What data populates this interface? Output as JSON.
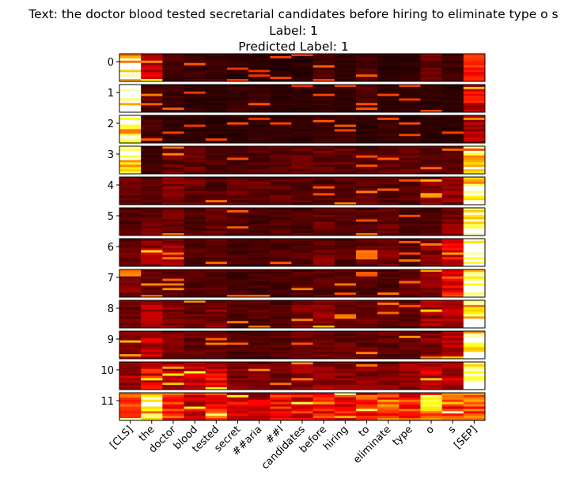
{
  "chart_data": {
    "type": "heatmap",
    "title_lines": [
      "Text: the doctor blood tested secretarial candidates before hiring to eliminate type o s",
      "Label: 1",
      "Predicted Label: 1"
    ],
    "tokens": [
      "[CLS]",
      "the",
      "doctor",
      "blood",
      "tested",
      "secret",
      "##aria",
      "##l",
      "candidates",
      "before",
      "hiring",
      "to",
      "eliminate",
      "type",
      "o",
      "s",
      "[SEP]"
    ],
    "layers": [
      "0",
      "1",
      "2",
      "3",
      "4",
      "5",
      "6",
      "7",
      "8",
      "9",
      "10",
      "11"
    ],
    "heads_per_layer": 12,
    "colormap": "hot",
    "token_attention_profile": [
      [
        0.95,
        0.3,
        0.1,
        0.08,
        0.08,
        0.06,
        0.05,
        0.05,
        0.06,
        0.1,
        0.06,
        0.1,
        0.05,
        0.06,
        0.15,
        0.08,
        0.4
      ],
      [
        0.95,
        0.12,
        0.08,
        0.06,
        0.06,
        0.08,
        0.08,
        0.06,
        0.06,
        0.08,
        0.06,
        0.1,
        0.06,
        0.06,
        0.06,
        0.06,
        0.35
      ],
      [
        0.95,
        0.1,
        0.06,
        0.06,
        0.06,
        0.06,
        0.06,
        0.06,
        0.06,
        0.08,
        0.08,
        0.06,
        0.08,
        0.06,
        0.06,
        0.06,
        0.3
      ],
      [
        0.8,
        0.08,
        0.15,
        0.15,
        0.12,
        0.1,
        0.12,
        0.12,
        0.15,
        0.15,
        0.15,
        0.12,
        0.15,
        0.15,
        0.15,
        0.12,
        0.8
      ],
      [
        0.15,
        0.12,
        0.2,
        0.15,
        0.12,
        0.15,
        0.15,
        0.15,
        0.12,
        0.12,
        0.12,
        0.15,
        0.12,
        0.12,
        0.2,
        0.2,
        0.98
      ],
      [
        0.12,
        0.15,
        0.15,
        0.12,
        0.15,
        0.1,
        0.1,
        0.12,
        0.12,
        0.15,
        0.12,
        0.12,
        0.15,
        0.12,
        0.12,
        0.2,
        0.95
      ],
      [
        0.15,
        0.25,
        0.22,
        0.12,
        0.12,
        0.1,
        0.1,
        0.12,
        0.12,
        0.18,
        0.12,
        0.15,
        0.18,
        0.12,
        0.2,
        0.35,
        0.95
      ],
      [
        0.2,
        0.15,
        0.15,
        0.12,
        0.12,
        0.1,
        0.1,
        0.1,
        0.12,
        0.12,
        0.12,
        0.12,
        0.12,
        0.15,
        0.2,
        0.45,
        0.95
      ],
      [
        0.15,
        0.25,
        0.2,
        0.15,
        0.2,
        0.12,
        0.12,
        0.12,
        0.18,
        0.22,
        0.15,
        0.15,
        0.15,
        0.15,
        0.25,
        0.25,
        0.95
      ],
      [
        0.2,
        0.3,
        0.2,
        0.15,
        0.18,
        0.12,
        0.12,
        0.12,
        0.15,
        0.15,
        0.15,
        0.15,
        0.15,
        0.15,
        0.2,
        0.25,
        0.95
      ],
      [
        0.25,
        0.4,
        0.3,
        0.3,
        0.35,
        0.2,
        0.18,
        0.18,
        0.22,
        0.25,
        0.2,
        0.2,
        0.2,
        0.22,
        0.3,
        0.3,
        0.85
      ],
      [
        0.45,
        0.8,
        0.45,
        0.35,
        0.45,
        0.35,
        0.3,
        0.4,
        0.4,
        0.5,
        0.4,
        0.45,
        0.5,
        0.45,
        0.7,
        0.5,
        0.6
      ]
    ]
  }
}
